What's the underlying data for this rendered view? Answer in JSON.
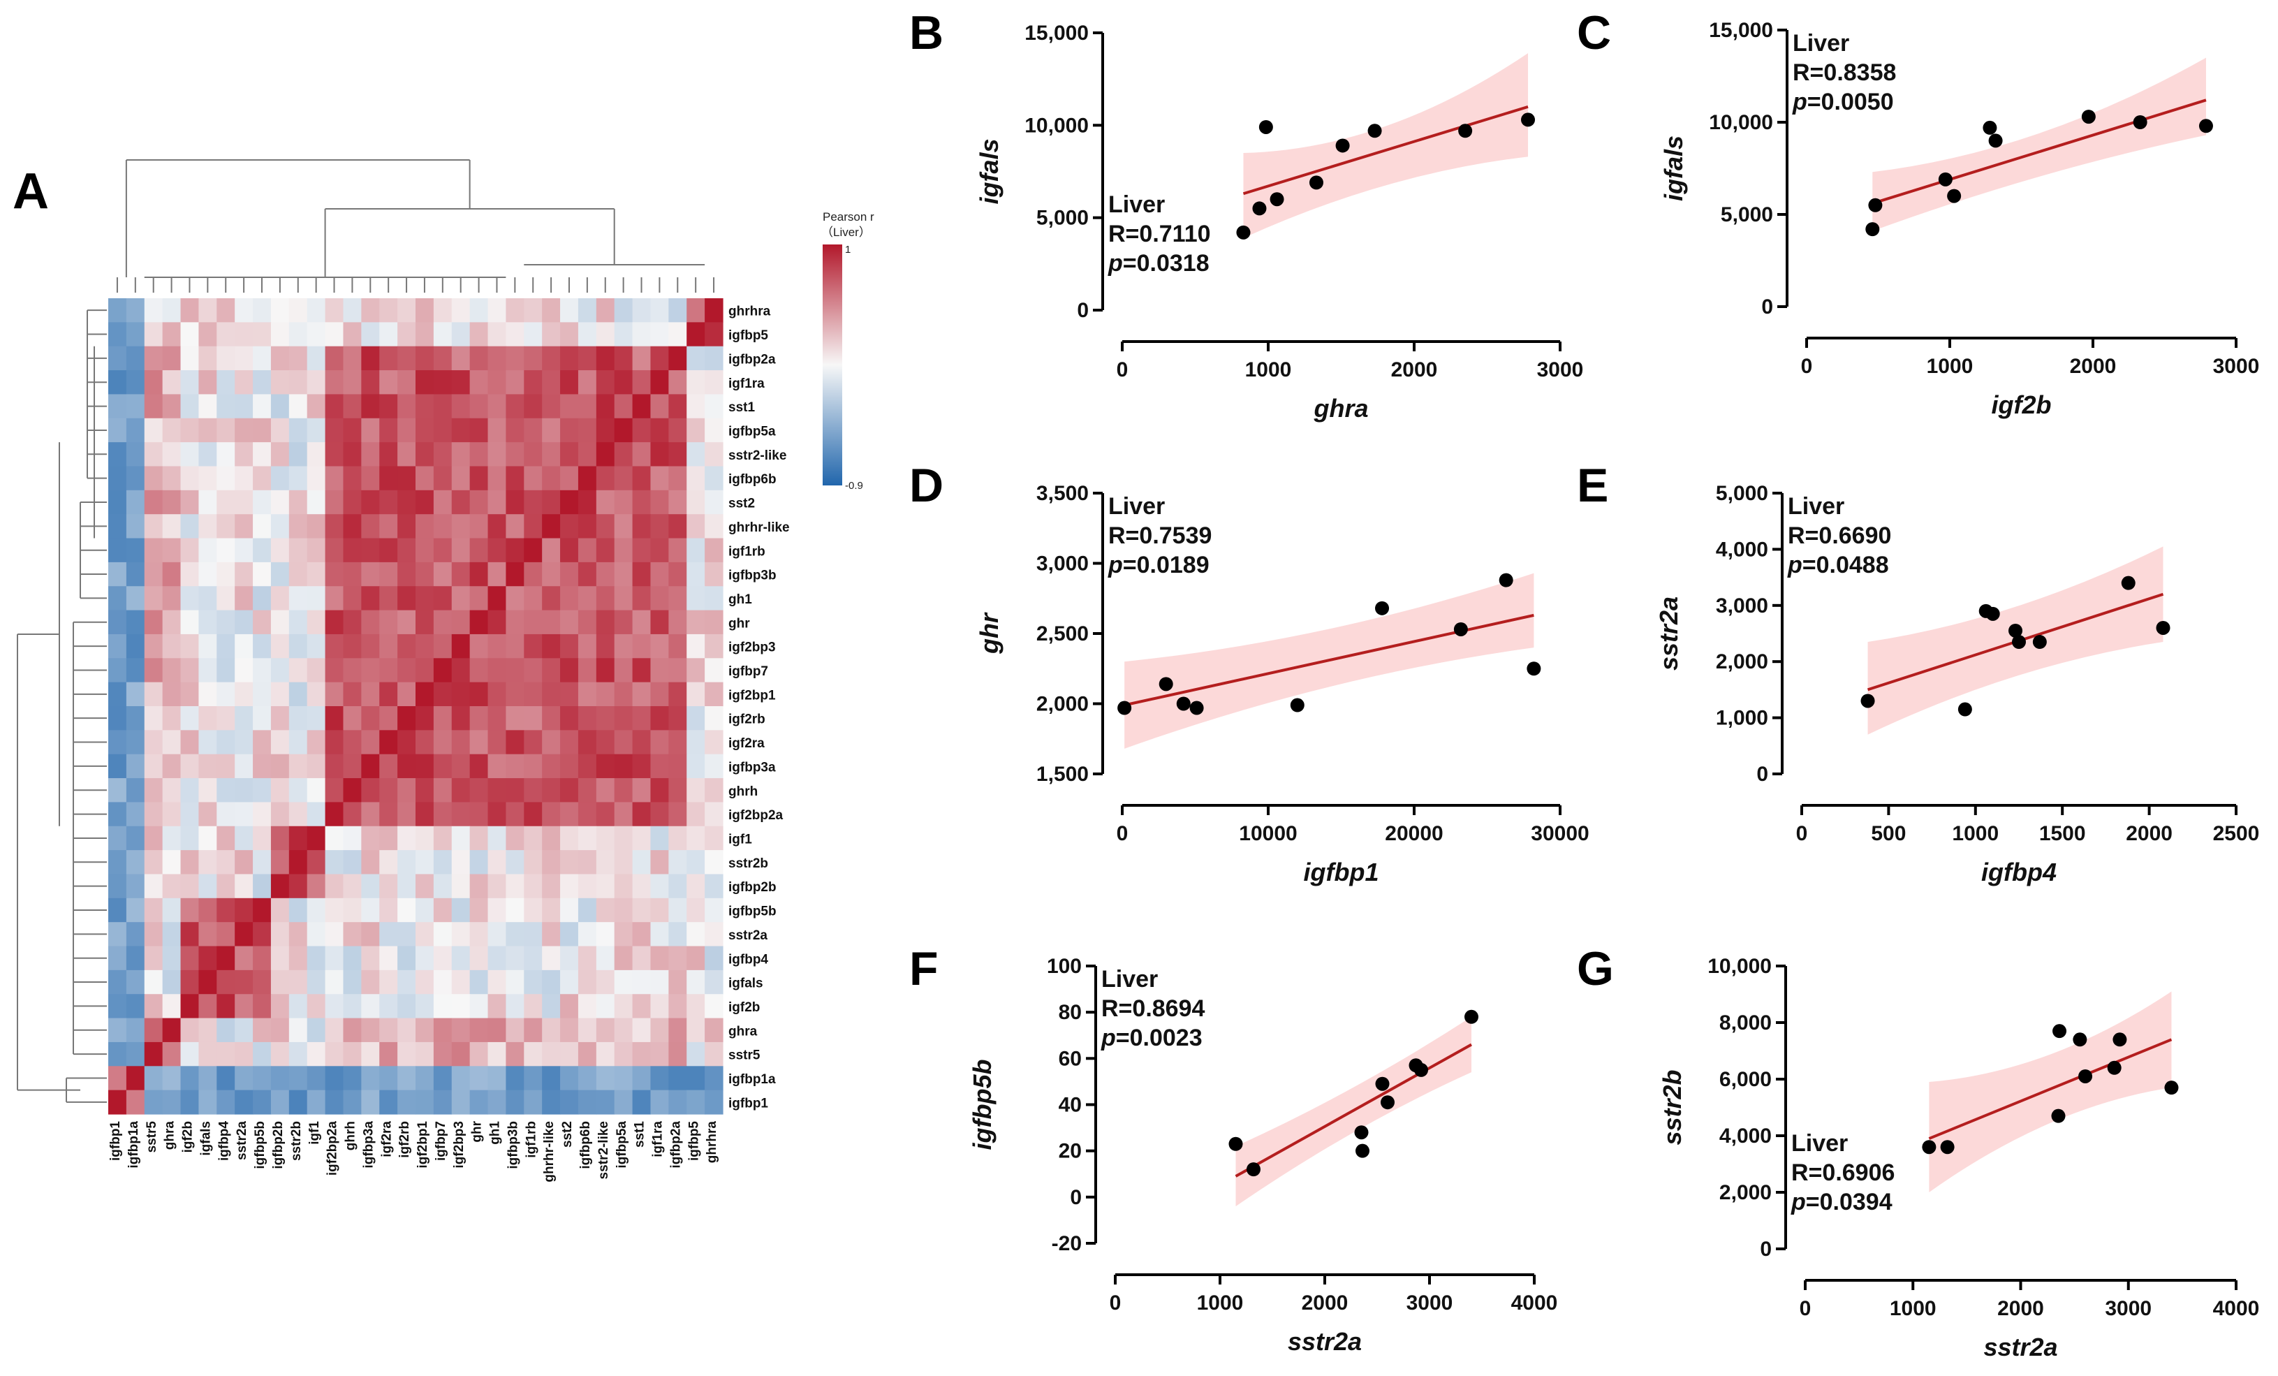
{
  "colors": {
    "neg": "#2166ac",
    "mid": "#f7f7f7",
    "pos": "#b2182b",
    "fit_line": "#b41e1e",
    "ci_band": "#fbd0d0",
    "point": "#000000"
  },
  "chart_data": [
    {
      "panel": "A",
      "type": "heatmap",
      "legend": {
        "title_line1": "Pearson r",
        "title_line2": "（Liver）",
        "max_label": "1",
        "min_label": "-0.9",
        "vmax": 1,
        "vmin": -0.9
      },
      "row_labels": [
        "ghrhra",
        "igfbp5",
        "igfbp2a",
        "igf1ra",
        "sst1",
        "igfbp5a",
        "sstr2-like",
        "igfbp6b",
        "sst2",
        "ghrhr-like",
        "igf1rb",
        "igfbp3b",
        "gh1",
        "ghr",
        "igf2bp3",
        "igfbp7",
        "igf2bp1",
        "igf2rb",
        "igf2ra",
        "igfbp3a",
        "ghrh",
        "igf2bp2a",
        "igf1",
        "sstr2b",
        "igfbp2b",
        "igfbp5b",
        "sstr2a",
        "igfbp4",
        "igfals",
        "igf2b",
        "ghra",
        "sstr5",
        "igfbp1a",
        "igfbp1"
      ],
      "col_labels": [
        "igfbp1",
        "igfbp1a",
        "sstr5",
        "ghra",
        "igf2b",
        "igfals",
        "igfbp4",
        "sstr2a",
        "igfbp5b",
        "igfbp2b",
        "sstr2b",
        "igf1",
        "igf2bp2a",
        "ghrh",
        "igfbp3a",
        "igf2ra",
        "igf2rb",
        "igf2bp1",
        "igfbp7",
        "igf2bp3",
        "ghr",
        "gh1",
        "igfbp3b",
        "igf1rb",
        "ghrhr-like",
        "sst2",
        "igfbp6b",
        "sstr2-like",
        "igfbp5a",
        "sst1",
        "igf1ra",
        "igfbp2a",
        "igfbp5",
        "ghrhra"
      ],
      "cluster_groups": [
        [
          0,
          1
        ],
        [
          2,
          21
        ],
        [
          22,
          24
        ],
        [
          25,
          29
        ],
        [
          30,
          33
        ]
      ]
    },
    {
      "panel": "B",
      "type": "scatter",
      "xlabel": "ghra",
      "ylabel": "igfals",
      "stat_title": "Liver",
      "r_text": "R=0.7110",
      "p_label": "p",
      "p_text": "=0.0318",
      "stat_pos": "bottom-left",
      "xlim": [
        0,
        3000
      ],
      "ylim": [
        0,
        15000
      ],
      "xticks": [
        0,
        1000,
        2000,
        3000
      ],
      "yticks": [
        0,
        5000,
        10000,
        15000
      ],
      "yticklabels": [
        "0",
        "5,000",
        "10,000",
        "15,000"
      ],
      "x": [
        830,
        940,
        985,
        1060,
        1330,
        1510,
        1730,
        2350,
        2780
      ],
      "y": [
        4200,
        5500,
        9900,
        6000,
        6900,
        8900,
        9700,
        9700,
        10300
      ],
      "fit": {
        "x0": 830,
        "y0": 6300,
        "x1": 2780,
        "y1": 11000
      },
      "ci": {
        "low0": 3900,
        "high0": 8500,
        "lowm": 7400,
        "highm": 8700,
        "low1": 8300,
        "high1": 13900
      }
    },
    {
      "panel": "C",
      "type": "scatter",
      "xlabel": "igf2b",
      "ylabel": "igfals",
      "stat_title": "Liver",
      "r_text": "R=0.8358",
      "p_label": "p",
      "p_text": "=0.0050",
      "stat_pos": "top-left",
      "xlim": [
        0,
        3000
      ],
      "ylim": [
        0,
        15000
      ],
      "xticks": [
        0,
        1000,
        2000,
        3000
      ],
      "yticks": [
        0,
        5000,
        10000,
        15000
      ],
      "yticklabels": [
        "0",
        "5,000",
        "10,000",
        "15,000"
      ],
      "x": [
        460,
        480,
        970,
        1030,
        1280,
        1320,
        1970,
        2330,
        2790
      ],
      "y": [
        4200,
        5500,
        6900,
        6000,
        9700,
        9000,
        10300,
        10000,
        9800
      ],
      "fit": {
        "x0": 460,
        "y0": 5600,
        "x1": 2790,
        "y1": 11200
      },
      "ci": {
        "low0": 4100,
        "high0": 7300,
        "lowm": 7400,
        "highm": 8400,
        "low1": 9300,
        "high1": 13500
      }
    },
    {
      "panel": "D",
      "type": "scatter",
      "xlabel": "igfbp1",
      "ylabel": "ghr",
      "stat_title": "Liver",
      "r_text": "R=0.7539",
      "p_label": "p",
      "p_text": "=0.0189",
      "stat_pos": "top-left",
      "xlim": [
        0,
        30000
      ],
      "ylim": [
        1500,
        3500
      ],
      "xticks": [
        0,
        10000,
        20000,
        30000
      ],
      "yticks": [
        1500,
        2000,
        2500,
        3000,
        3500
      ],
      "yticklabels": [
        "1,500",
        "2,000",
        "2,500",
        "3,000",
        "3,500"
      ],
      "x": [
        150,
        3000,
        4200,
        5100,
        12000,
        17800,
        23200,
        26300,
        28200
      ],
      "y": [
        1970,
        2140,
        2000,
        1970,
        1990,
        2680,
        2530,
        2880,
        2250
      ],
      "fit": {
        "x0": 150,
        "y0": 1990,
        "x1": 28200,
        "y1": 2630
      },
      "ci": {
        "low0": 1680,
        "high0": 2300,
        "lowm": 2200,
        "highm": 2450,
        "low1": 2400,
        "high1": 2930
      }
    },
    {
      "panel": "E",
      "type": "scatter",
      "xlabel": "igfbp4",
      "ylabel": "sstr2a",
      "stat_title": "Liver",
      "r_text": "R=0.6690",
      "p_label": "p",
      "p_text": "=0.0488",
      "stat_pos": "top-left",
      "xlim": [
        0,
        2500
      ],
      "ylim": [
        0,
        5000
      ],
      "xticks": [
        0,
        500,
        1000,
        1500,
        2000,
        2500
      ],
      "yticks": [
        0,
        1000,
        2000,
        3000,
        4000,
        5000
      ],
      "yticklabels": [
        "0",
        "1,000",
        "2,000",
        "3,000",
        "4,000",
        "5,000"
      ],
      "x": [
        380,
        940,
        1060,
        1100,
        1230,
        1250,
        1370,
        1880,
        2080
      ],
      "y": [
        1300,
        1150,
        2900,
        2850,
        2550,
        2350,
        2350,
        3400,
        2600
      ],
      "fit": {
        "x0": 380,
        "y0": 1500,
        "x1": 2080,
        "y1": 3200
      },
      "ci": {
        "low0": 700,
        "high0": 2350,
        "lowm": 1950,
        "highm": 2750,
        "low1": 2350,
        "high1": 4050
      }
    },
    {
      "panel": "F",
      "type": "scatter",
      "xlabel": "sstr2a",
      "ylabel": "igfbp5b",
      "stat_title": "Liver",
      "r_text": "R=0.8694",
      "p_label": "p",
      "p_text": "=0.0023",
      "stat_pos": "top-left",
      "xlim": [
        0,
        4000
      ],
      "ylim": [
        -20,
        100
      ],
      "xticks": [
        0,
        1000,
        2000,
        3000,
        4000
      ],
      "yticks": [
        -20,
        0,
        20,
        40,
        60,
        80,
        100
      ],
      "yticklabels": [
        "-20",
        "0",
        "20",
        "40",
        "60",
        "80",
        "100"
      ],
      "x": [
        1150,
        1320,
        2350,
        2360,
        2550,
        2600,
        2870,
        2920,
        3400
      ],
      "y": [
        23,
        12,
        28,
        20,
        49,
        41,
        57,
        55,
        78
      ],
      "fit": {
        "x0": 1150,
        "y0": 9,
        "x1": 3400,
        "y1": 66
      },
      "ci": {
        "low0": -4,
        "high0": 22,
        "lowm": 31,
        "highm": 45,
        "low1": 54,
        "high1": 78
      }
    },
    {
      "panel": "G",
      "type": "scatter",
      "xlabel": "sstr2a",
      "ylabel": "sstr2b",
      "stat_title": "Liver",
      "r_text": "R=0.6906",
      "p_label": "p",
      "p_text": "=0.0394",
      "stat_pos": "bottom-left",
      "xlim": [
        0,
        4000
      ],
      "ylim": [
        0,
        10000
      ],
      "xticks": [
        0,
        1000,
        2000,
        3000,
        4000
      ],
      "yticks": [
        0,
        2000,
        4000,
        6000,
        8000,
        10000
      ],
      "yticklabels": [
        "0",
        "2,000",
        "4,000",
        "6,000",
        "8,000",
        "10,000"
      ],
      "x": [
        1150,
        1320,
        2350,
        2360,
        2550,
        2600,
        2870,
        2920,
        3400
      ],
      "y": [
        3600,
        3600,
        4700,
        7700,
        7400,
        6100,
        6400,
        7400,
        5700
      ],
      "fit": {
        "x0": 1150,
        "y0": 3900,
        "x1": 3400,
        "y1": 7400
      },
      "ci": {
        "low0": 2000,
        "high0": 5900,
        "lowm": 5050,
        "highm": 6250,
        "low1": 5700,
        "high1": 9100
      }
    }
  ]
}
